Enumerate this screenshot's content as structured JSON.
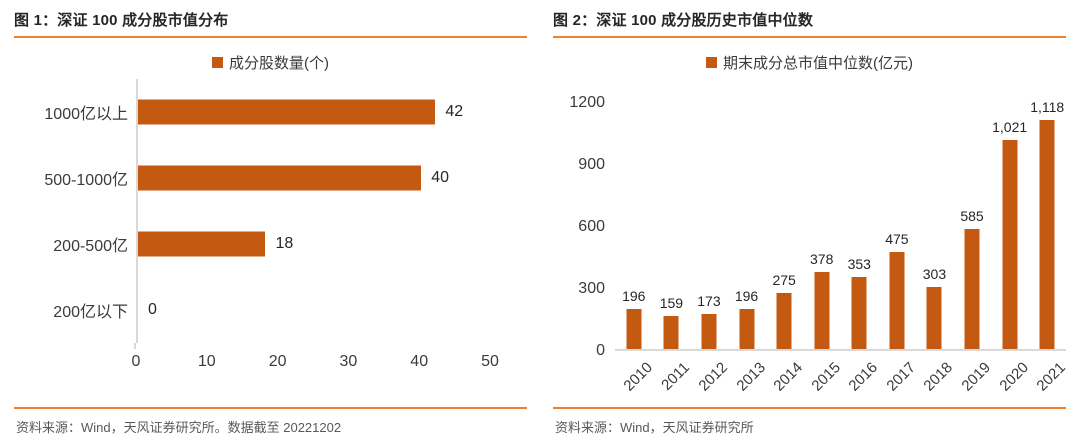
{
  "figure1": {
    "title": "图 1：深证 100 成分股市值分布",
    "legend": "成分股数量(个)",
    "source": "资料来源：Wind，天风证券研究所。数据截至 20221202"
  },
  "figure2": {
    "title": "图 2：深证 100 成分股历史市值中位数",
    "legend": "期末成分总市值中位数(亿元)",
    "source": "资料来源：Wind，天风证券研究所"
  },
  "colors": {
    "bar": "#c45a11",
    "rule": "#f0812c",
    "axis": "#d9d9d9",
    "title": "#262626",
    "source": "#595959"
  },
  "chart_data": [
    {
      "type": "bar",
      "orientation": "horizontal",
      "title": "图 1：深证 100 成分股市值分布",
      "legend": [
        "成分股数量(个)"
      ],
      "categories": [
        "1000亿以上",
        "500-1000亿",
        "200-500亿",
        "200亿以下"
      ],
      "values": [
        42,
        40,
        18,
        0
      ],
      "value_labels": [
        "42",
        "40",
        "18",
        "0"
      ],
      "xlim": [
        0,
        50
      ],
      "xticks": [
        0,
        10,
        20,
        30,
        40,
        50
      ],
      "grid": false,
      "legend_position": "top-center"
    },
    {
      "type": "bar",
      "orientation": "vertical",
      "title": "图 2：深证 100 成分股历史市值中位数",
      "legend": [
        "期末成分总市值中位数(亿元)"
      ],
      "categories": [
        "2010",
        "2011",
        "2012",
        "2013",
        "2014",
        "2015",
        "2016",
        "2017",
        "2018",
        "2019",
        "2020",
        "2021"
      ],
      "values": [
        196,
        159,
        173,
        196,
        275,
        378,
        353,
        475,
        303,
        585,
        1021,
        1118
      ],
      "value_labels": [
        "196",
        "159",
        "173",
        "196",
        "275",
        "378",
        "353",
        "475",
        "303",
        "585",
        "1,021",
        "1,118"
      ],
      "ylim": [
        0,
        1200
      ],
      "yticks": [
        0,
        300,
        600,
        900,
        1200
      ],
      "grid": false,
      "legend_position": "top-center"
    }
  ]
}
